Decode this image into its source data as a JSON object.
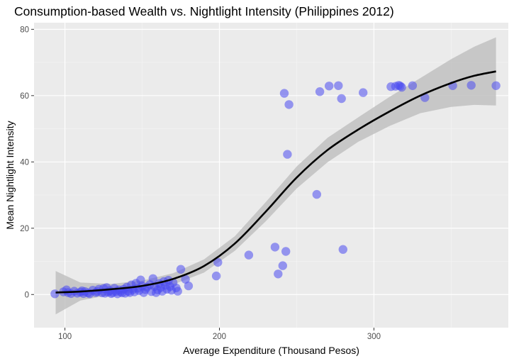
{
  "chart_data": {
    "type": "scatter",
    "title": "Consumption-based Wealth vs. Nightlight Intensity (Philippines 2012)",
    "xlabel": "Average Expenditure (Thousand Pesos)",
    "ylabel": "Mean Nightlight Intensity",
    "xlim": [
      80,
      387
    ],
    "ylim": [
      -10,
      82
    ],
    "x_ticks": [
      100,
      200,
      300
    ],
    "y_ticks": [
      0,
      20,
      40,
      60,
      80
    ],
    "x_tick_labels": [
      "100",
      "200",
      "300"
    ],
    "y_tick_labels": [
      "0",
      "20",
      "40",
      "60",
      "80"
    ],
    "grid": true,
    "point_color": "#4B4BF0",
    "smooth_line_color": "#000000",
    "ribbon_color": "#BEBEBE",
    "panel_background": "#EBEBEB",
    "points": [
      [
        93.5,
        0.2
      ],
      [
        99,
        0.8
      ],
      [
        101,
        1.4
      ],
      [
        102,
        0.6
      ],
      [
        104,
        0.3
      ],
      [
        106,
        1.0
      ],
      [
        108,
        0.4
      ],
      [
        110,
        0.7
      ],
      [
        111,
        1.1
      ],
      [
        112,
        0.3
      ],
      [
        113,
        0.9
      ],
      [
        115,
        0.5
      ],
      [
        116,
        0.2
      ],
      [
        118,
        1.3
      ],
      [
        120,
        0.6
      ],
      [
        121,
        0.9
      ],
      [
        122,
        1.6
      ],
      [
        124,
        0.5
      ],
      [
        125,
        1.8
      ],
      [
        126,
        0.4
      ],
      [
        127,
        2.1
      ],
      [
        128,
        0.7
      ],
      [
        129,
        1.2
      ],
      [
        130,
        0.3
      ],
      [
        131,
        0.6
      ],
      [
        132,
        1.9
      ],
      [
        133,
        0.9
      ],
      [
        134,
        0.2
      ],
      [
        135,
        1.4
      ],
      [
        136,
        0.8
      ],
      [
        137,
        0.5
      ],
      [
        138,
        1.6
      ],
      [
        139,
        0.4
      ],
      [
        140,
        2.2
      ],
      [
        141,
        1.0
      ],
      [
        142,
        0.6
      ],
      [
        143,
        2.9
      ],
      [
        144,
        1.5
      ],
      [
        145,
        0.8
      ],
      [
        146,
        3.4
      ],
      [
        147,
        1.9
      ],
      [
        148,
        1.2
      ],
      [
        149,
        4.4
      ],
      [
        150,
        2.6
      ],
      [
        151,
        0.6
      ],
      [
        152,
        1.5
      ],
      [
        153,
        2.2
      ],
      [
        155,
        3.0
      ],
      [
        156,
        0.9
      ],
      [
        157,
        4.8
      ],
      [
        158,
        2.4
      ],
      [
        159,
        0.6
      ],
      [
        160,
        1.4
      ],
      [
        161,
        3.3
      ],
      [
        162,
        2.1
      ],
      [
        163,
        1.0
      ],
      [
        164,
        3.9
      ],
      [
        165,
        2.8
      ],
      [
        166,
        1.6
      ],
      [
        167,
        4.3
      ],
      [
        168,
        2.4
      ],
      [
        169,
        1.3
      ],
      [
        170,
        3.6
      ],
      [
        172,
        2.0
      ],
      [
        173,
        1.0
      ],
      [
        175,
        7.6
      ],
      [
        178,
        4.6
      ],
      [
        180,
        2.6
      ],
      [
        198,
        5.6
      ],
      [
        199,
        9.7
      ],
      [
        219,
        11.9
      ],
      [
        236,
        14.3
      ],
      [
        238,
        6.2
      ],
      [
        241,
        8.7
      ],
      [
        242,
        60.7
      ],
      [
        243,
        13.0
      ],
      [
        244,
        42.3
      ],
      [
        245,
        57.3
      ],
      [
        263,
        30.2
      ],
      [
        265,
        61.2
      ],
      [
        271,
        62.9
      ],
      [
        277,
        63.0
      ],
      [
        279,
        59.1
      ],
      [
        280,
        13.6
      ],
      [
        293,
        60.9
      ],
      [
        311,
        62.7
      ],
      [
        314,
        62.8
      ],
      [
        316,
        63.1
      ],
      [
        317,
        62.9
      ],
      [
        318,
        62.5
      ],
      [
        325,
        63.0
      ],
      [
        333,
        59.4
      ],
      [
        351,
        63.0
      ],
      [
        363,
        63.1
      ],
      [
        379,
        63.0
      ]
    ],
    "smooth_curve": [
      [
        94,
        0.6
      ],
      [
        110,
        0.9
      ],
      [
        130,
        1.6
      ],
      [
        150,
        2.6
      ],
      [
        170,
        4.7
      ],
      [
        190,
        8.6
      ],
      [
        210,
        15.4
      ],
      [
        230,
        25.0
      ],
      [
        250,
        35.3
      ],
      [
        270,
        43.6
      ],
      [
        290,
        49.8
      ],
      [
        310,
        55.2
      ],
      [
        330,
        60.0
      ],
      [
        350,
        63.8
      ],
      [
        365,
        66.0
      ],
      [
        379,
        67.3
      ]
    ],
    "ribbon_upper": [
      [
        94,
        7.1
      ],
      [
        110,
        3.6
      ],
      [
        130,
        3.2
      ],
      [
        150,
        4.2
      ],
      [
        170,
        6.4
      ],
      [
        190,
        10.6
      ],
      [
        210,
        17.6
      ],
      [
        230,
        27.9
      ],
      [
        250,
        38.6
      ],
      [
        270,
        47.3
      ],
      [
        290,
        53.5
      ],
      [
        310,
        59.6
      ],
      [
        330,
        65.3
      ],
      [
        350,
        71.0
      ],
      [
        365,
        74.8
      ],
      [
        379,
        77.6
      ]
    ],
    "ribbon_lower": [
      [
        94,
        -6.0
      ],
      [
        110,
        -1.8
      ],
      [
        130,
        0.0
      ],
      [
        150,
        1.0
      ],
      [
        170,
        3.0
      ],
      [
        190,
        6.6
      ],
      [
        210,
        13.2
      ],
      [
        230,
        22.1
      ],
      [
        250,
        32.0
      ],
      [
        270,
        39.9
      ],
      [
        290,
        46.1
      ],
      [
        310,
        50.8
      ],
      [
        330,
        54.7
      ],
      [
        350,
        56.6
      ],
      [
        365,
        57.2
      ],
      [
        379,
        57.0
      ]
    ]
  }
}
